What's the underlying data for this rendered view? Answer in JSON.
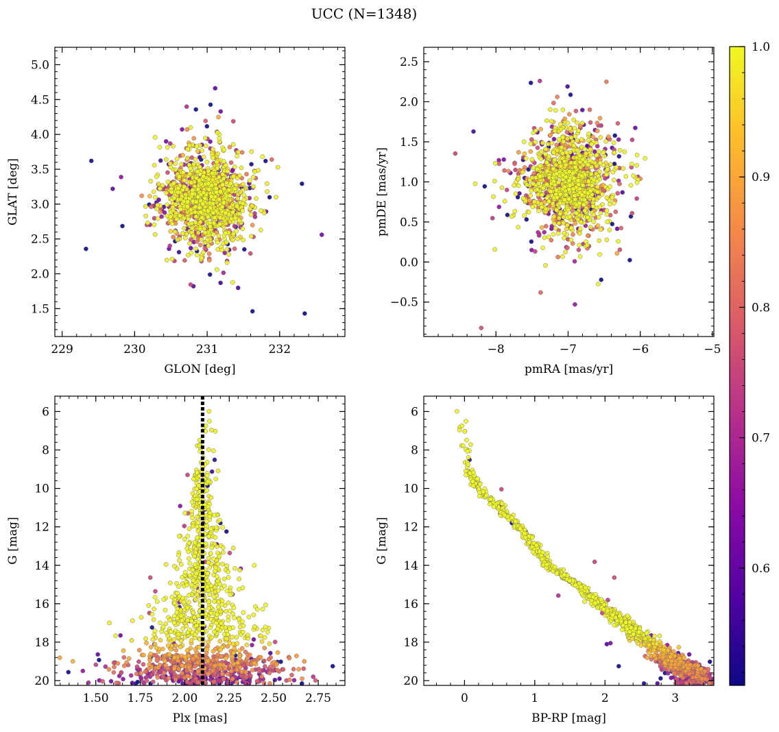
{
  "title": "UCC (N=1348)",
  "colorbar": {
    "min": 0.51,
    "max": 1.0,
    "ticks": [
      "1.0",
      "0.9",
      "0.8",
      "0.7",
      "0.6"
    ],
    "tick_values": [
      1.0,
      0.9,
      0.8,
      0.7,
      0.6
    ],
    "colormap": [
      "#0d0887",
      "#5302a3",
      "#8b0aa5",
      "#b83289",
      "#db5c68",
      "#f48849",
      "#febd2a",
      "#f0f921"
    ]
  },
  "colors": {
    "point_edge": "#6b6b6b",
    "member": "#eef455",
    "background": "#ffffff"
  },
  "chart_data": [
    {
      "type": "scatter",
      "id": "sky",
      "xlabel": "GLON [deg]",
      "ylabel": "GLAT [deg]",
      "xlim": [
        228.9,
        232.9
      ],
      "ylim": [
        1.1,
        5.25
      ],
      "xticks": [
        "229",
        "230",
        "231",
        "232"
      ],
      "xtick_values": [
        229,
        230,
        231,
        232
      ],
      "yticks": [
        "1.5",
        "2.0",
        "2.5",
        "3.0",
        "3.5",
        "4.0",
        "4.5",
        "5.0"
      ],
      "ytick_values": [
        1.5,
        2.0,
        2.5,
        3.0,
        3.5,
        4.0,
        4.5,
        5.0
      ],
      "center": [
        230.98,
        3.08
      ],
      "spread": [
        0.42,
        0.45
      ],
      "n_points": 1348
    },
    {
      "type": "scatter",
      "id": "pm",
      "xlabel": "pmRA [mas/yr]",
      "ylabel": "pmDE [mas/yr]",
      "xlim": [
        -9.0,
        -4.98
      ],
      "ylim": [
        -0.93,
        2.68
      ],
      "xticks": [
        "−8",
        "−7",
        "−6",
        "−5"
      ],
      "xtick_values": [
        -8,
        -7,
        -6,
        -5
      ],
      "yticks": [
        "−0.5",
        "0.0",
        "0.5",
        "1.0",
        "1.5",
        "2.0",
        "2.5"
      ],
      "ytick_values": [
        -0.5,
        0.0,
        0.5,
        1.0,
        1.5,
        2.0,
        2.5
      ],
      "center": [
        -7.0,
        1.0
      ],
      "spread": [
        0.42,
        0.42
      ],
      "n_points": 1348
    },
    {
      "type": "scatter",
      "id": "plx",
      "xlabel": "Plx [mas]",
      "ylabel": "G [mag]",
      "xlim": [
        1.27,
        2.9
      ],
      "ylim": [
        20.25,
        5.2
      ],
      "xticks": [
        "1.50",
        "1.75",
        "2.00",
        "2.25",
        "2.50",
        "2.75"
      ],
      "xtick_values": [
        1.5,
        1.75,
        2.0,
        2.25,
        2.5,
        2.75
      ],
      "yticks": [
        "6",
        "8",
        "10",
        "12",
        "14",
        "16",
        "18",
        "20"
      ],
      "ytick_values": [
        6,
        8,
        10,
        12,
        14,
        16,
        18,
        20
      ],
      "reference_line_x": 2.1,
      "n_points": 1348
    },
    {
      "type": "scatter",
      "id": "cmd",
      "xlabel": "BP-RP [mag]",
      "ylabel": "G [mag]",
      "xlim": [
        -0.58,
        3.55
      ],
      "ylim": [
        20.25,
        5.2
      ],
      "xticks": [
        "0",
        "1",
        "2",
        "3"
      ],
      "xtick_values": [
        0,
        1,
        2,
        3
      ],
      "yticks": [
        "6",
        "8",
        "10",
        "12",
        "14",
        "16",
        "18",
        "20"
      ],
      "ytick_values": [
        6,
        8,
        10,
        12,
        14,
        16,
        18,
        20
      ],
      "sequence_points": [
        [
          -0.1,
          5.6
        ],
        [
          0.0,
          7.0
        ],
        [
          0.05,
          9.0
        ],
        [
          0.2,
          10.0
        ],
        [
          0.5,
          11.0
        ],
        [
          0.9,
          12.5
        ],
        [
          1.2,
          14.0
        ],
        [
          1.6,
          15.0
        ],
        [
          2.1,
          16.5
        ],
        [
          2.6,
          18.0
        ],
        [
          3.0,
          19.0
        ],
        [
          3.3,
          19.8
        ]
      ],
      "n_points": 1348
    }
  ]
}
